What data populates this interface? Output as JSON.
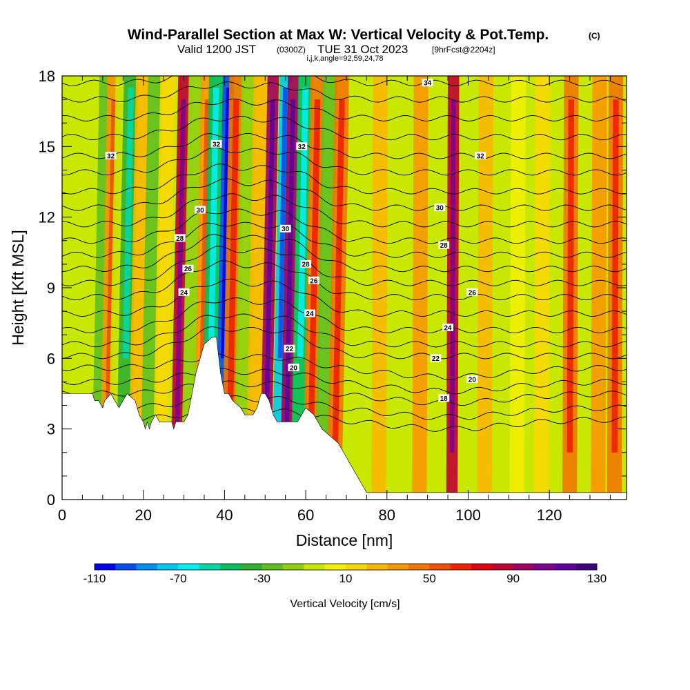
{
  "chart_data": {
    "type": "heatmap",
    "title": "Wind-Parallel Section at Max W: Vertical Velocity & Pot.Temp.",
    "title_mark": "(C)",
    "subtitle_valid": "Valid 1200 JST",
    "subtitle_utc": "(0300Z)",
    "subtitle_date": "TUE 31 Oct 2023",
    "subtitle_fcst": "[9hrFcst@2204z]",
    "subtitle_indices": "i,j,k,angle=92,59,24,78",
    "xlabel": "Distance [nm]",
    "ylabel": "Height [Kft MSL]",
    "xlim": [
      0,
      139
    ],
    "ylim": [
      0,
      18
    ],
    "x_ticks": [
      "0",
      "20",
      "40",
      "60",
      "80",
      "100",
      "120"
    ],
    "x_tick_values": [
      0,
      20,
      40,
      60,
      80,
      100,
      120
    ],
    "y_ticks": [
      "0",
      "3",
      "6",
      "9",
      "12",
      "15",
      "18"
    ],
    "y_tick_values": [
      0,
      3,
      6,
      9,
      12,
      15,
      18
    ],
    "colorbar": {
      "label": "Vertical Velocity [cm/s]",
      "min": -110,
      "max": 130,
      "step": 10,
      "tick_labels": [
        "-110",
        "-70",
        "-30",
        "10",
        "50",
        "90",
        "130"
      ],
      "tick_values": [
        -110,
        -70,
        -30,
        10,
        50,
        90,
        130
      ],
      "colors": [
        "#0000f0",
        "#0050f0",
        "#0090f0",
        "#00c8f0",
        "#00f0f0",
        "#00d8a8",
        "#00c060",
        "#30b030",
        "#60c020",
        "#90d010",
        "#c8e800",
        "#f0f000",
        "#f8d800",
        "#f8b800",
        "#f89800",
        "#f07800",
        "#f05000",
        "#f02000",
        "#e00010",
        "#c00030",
        "#a00060",
        "#800090",
        "#6000a0",
        "#400080"
      ]
    },
    "terrain_kft": [
      [
        0,
        4.5
      ],
      [
        7.5,
        4.5
      ],
      [
        8,
        4.2
      ],
      [
        9,
        4.2
      ],
      [
        10,
        3.9
      ],
      [
        10.5,
        4.2
      ],
      [
        12,
        4.5
      ],
      [
        13,
        4.2
      ],
      [
        14,
        3.9
      ],
      [
        15,
        4.2
      ],
      [
        16,
        4.5
      ],
      [
        18,
        4.2
      ],
      [
        19,
        3.6
      ],
      [
        20,
        3.3
      ],
      [
        20.5,
        3.0
      ],
      [
        21,
        3.3
      ],
      [
        21.5,
        3.0
      ],
      [
        22,
        3.3
      ],
      [
        23,
        3.6
      ],
      [
        24,
        3.3
      ],
      [
        27,
        3.3
      ],
      [
        27.5,
        3.0
      ],
      [
        28,
        3.3
      ],
      [
        30,
        3.3
      ],
      [
        31,
        3.6
      ],
      [
        32,
        4.5
      ],
      [
        33,
        5.4
      ],
      [
        34,
        6.0
      ],
      [
        35,
        6.6
      ],
      [
        37,
        6.9
      ],
      [
        38,
        6.9
      ],
      [
        39,
        5.4
      ],
      [
        40,
        4.5
      ],
      [
        41,
        4.5
      ],
      [
        42,
        4.2
      ],
      [
        44,
        3.9
      ],
      [
        45,
        3.6
      ],
      [
        47,
        3.6
      ],
      [
        48,
        3.9
      ],
      [
        49,
        4.5
      ],
      [
        50,
        4.5
      ],
      [
        51,
        4.2
      ],
      [
        52,
        3.6
      ],
      [
        53,
        3.3
      ],
      [
        58,
        3.3
      ],
      [
        59,
        3.6
      ],
      [
        60,
        3.9
      ],
      [
        62,
        3.6
      ],
      [
        63,
        3.3
      ],
      [
        64,
        3.0
      ],
      [
        66,
        2.7
      ],
      [
        68,
        2.4
      ],
      [
        69,
        2.1
      ],
      [
        70,
        1.8
      ],
      [
        71,
        1.5
      ],
      [
        72,
        1.2
      ],
      [
        73,
        0.9
      ],
      [
        74,
        0.6
      ],
      [
        75,
        0.3
      ],
      [
        76,
        0.3
      ],
      [
        139,
        0.3
      ]
    ],
    "w_bands": [
      {
        "x": 9,
        "w": -25
      },
      {
        "x": 11,
        "w": 35
      },
      {
        "x": 13,
        "w": -10
      },
      {
        "x": 15,
        "w": -40
      },
      {
        "x": 18,
        "w": 20
      },
      {
        "x": 21,
        "w": -30
      },
      {
        "x": 24,
        "w": 10
      },
      {
        "x": 28,
        "w": 80
      },
      {
        "x": 31,
        "w": -20
      },
      {
        "x": 34,
        "w": 35
      },
      {
        "x": 36,
        "w": -45
      },
      {
        "x": 39,
        "w": -100
      },
      {
        "x": 41,
        "w": 40
      },
      {
        "x": 44,
        "w": -20
      },
      {
        "x": 47,
        "w": 25
      },
      {
        "x": 50,
        "w": 90
      },
      {
        "x": 53,
        "w": -80
      },
      {
        "x": 55,
        "w": 95
      },
      {
        "x": 58,
        "w": -50
      },
      {
        "x": 61,
        "w": 40
      },
      {
        "x": 64,
        "w": -30
      },
      {
        "x": 67,
        "w": 45
      },
      {
        "x": 72,
        "w": -5
      },
      {
        "x": 78,
        "w": 25
      },
      {
        "x": 85,
        "w": -5
      },
      {
        "x": 88,
        "w": 30
      },
      {
        "x": 96,
        "w": 80
      },
      {
        "x": 104,
        "w": 20
      },
      {
        "x": 112,
        "w": 5
      },
      {
        "x": 118,
        "w": 15
      },
      {
        "x": 125,
        "w": 40
      },
      {
        "x": 132,
        "w": 30
      },
      {
        "x": 136,
        "w": 45
      }
    ],
    "theta_labels": [
      {
        "text": "34",
        "x": 90,
        "y": 17.7
      },
      {
        "text": "32",
        "x": 12,
        "y": 14.6
      },
      {
        "text": "32",
        "x": 38,
        "y": 15.1
      },
      {
        "text": "32",
        "x": 59,
        "y": 15.0
      },
      {
        "text": "32",
        "x": 103,
        "y": 14.6
      },
      {
        "text": "30",
        "x": 34,
        "y": 12.3
      },
      {
        "text": "30",
        "x": 55,
        "y": 11.5
      },
      {
        "text": "30",
        "x": 93,
        "y": 12.4
      },
      {
        "text": "28",
        "x": 29,
        "y": 11.1
      },
      {
        "text": "28",
        "x": 60,
        "y": 10.0
      },
      {
        "text": "28",
        "x": 94,
        "y": 10.8
      },
      {
        "text": "26",
        "x": 31,
        "y": 9.8
      },
      {
        "text": "26",
        "x": 62,
        "y": 9.3
      },
      {
        "text": "26",
        "x": 101,
        "y": 8.8
      },
      {
        "text": "24",
        "x": 30,
        "y": 8.8
      },
      {
        "text": "24",
        "x": 61,
        "y": 7.9
      },
      {
        "text": "24",
        "x": 95,
        "y": 7.3
      },
      {
        "text": "22",
        "x": 56,
        "y": 6.4
      },
      {
        "text": "22",
        "x": 92,
        "y": 6.0
      },
      {
        "text": "20",
        "x": 57,
        "y": 5.6
      },
      {
        "text": "20",
        "x": 101,
        "y": 5.1
      },
      {
        "text": "18",
        "x": 94,
        "y": 4.3
      }
    ]
  }
}
